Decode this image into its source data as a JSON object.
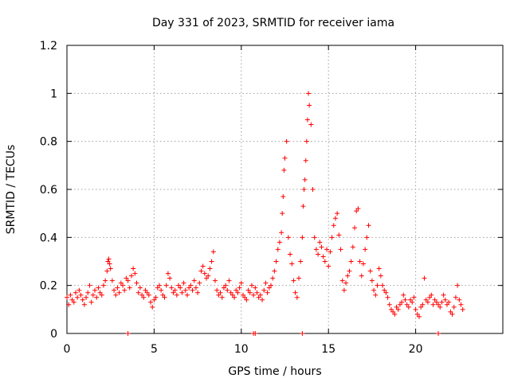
{
  "chart_data": {
    "type": "scatter",
    "title": "Day 331 of 2023, SRMTID for receiver iama",
    "xlabel": "GPS time / hours",
    "ylabel": "SRMTID / TECUs",
    "xlim": [
      0,
      25
    ],
    "ylim": [
      0,
      1.2
    ],
    "xticks": [
      0,
      5,
      10,
      15,
      20
    ],
    "xtick_labels": [
      "0",
      "5",
      "10",
      "15",
      "20"
    ],
    "yticks": [
      0,
      0.2,
      0.4,
      0.6,
      0.8,
      1.0,
      1.2
    ],
    "ytick_labels": [
      "0",
      "0.2",
      "0.4",
      "0.6",
      "0.8",
      "1",
      "1.2"
    ],
    "grid": true,
    "marker": "plus",
    "color": "#ff0000",
    "series": [
      {
        "name": "SRMTID",
        "x": [
          0.0,
          0.1,
          0.2,
          0.3,
          0.4,
          0.5,
          0.6,
          0.7,
          0.8,
          0.9,
          1.0,
          1.1,
          1.2,
          1.3,
          1.4,
          1.5,
          1.6,
          1.7,
          1.8,
          1.9,
          2.0,
          2.1,
          2.2,
          2.3,
          2.35,
          2.4,
          2.45,
          2.5,
          2.6,
          2.7,
          2.8,
          2.9,
          3.0,
          3.1,
          3.2,
          3.3,
          3.4,
          3.5,
          3.6,
          3.7,
          3.8,
          3.9,
          4.0,
          4.1,
          4.2,
          4.3,
          4.4,
          4.5,
          4.6,
          4.7,
          4.8,
          4.9,
          5.0,
          5.1,
          5.2,
          5.3,
          5.4,
          5.5,
          5.6,
          5.7,
          5.8,
          5.9,
          6.0,
          6.1,
          6.2,
          6.3,
          6.4,
          6.5,
          6.6,
          6.7,
          6.8,
          6.9,
          7.0,
          7.1,
          7.2,
          7.3,
          7.4,
          7.5,
          7.6,
          7.7,
          7.8,
          7.9,
          8.0,
          8.1,
          8.2,
          8.3,
          8.4,
          8.5,
          8.6,
          8.7,
          8.8,
          8.9,
          9.0,
          9.1,
          9.2,
          9.3,
          9.4,
          9.5,
          9.6,
          9.7,
          9.8,
          9.9,
          10.0,
          10.1,
          10.2,
          10.3,
          10.4,
          10.5,
          10.6,
          10.7,
          10.8,
          10.9,
          11.0,
          11.1,
          11.2,
          11.3,
          11.4,
          11.5,
          11.6,
          11.7,
          11.8,
          11.9,
          12.0,
          12.1,
          12.2,
          12.3,
          12.35,
          12.4,
          12.45,
          12.5,
          12.6,
          12.7,
          12.8,
          12.9,
          13.0,
          13.1,
          13.2,
          13.3,
          13.4,
          13.5,
          13.55,
          13.6,
          13.65,
          13.7,
          13.75,
          13.8,
          13.85,
          13.9,
          14.0,
          14.1,
          14.2,
          14.3,
          14.4,
          14.5,
          14.6,
          14.7,
          14.8,
          14.9,
          15.0,
          15.1,
          15.2,
          15.3,
          15.4,
          15.5,
          15.6,
          15.7,
          15.8,
          15.9,
          16.0,
          16.1,
          16.2,
          16.3,
          16.4,
          16.5,
          16.6,
          16.7,
          16.8,
          16.9,
          17.0,
          17.1,
          17.2,
          17.3,
          17.4,
          17.5,
          17.6,
          17.7,
          17.8,
          17.9,
          18.0,
          18.1,
          18.2,
          18.3,
          18.4,
          18.5,
          18.6,
          18.7,
          18.8,
          18.9,
          19.0,
          19.1,
          19.2,
          19.3,
          19.4,
          19.5,
          19.6,
          19.7,
          19.8,
          19.9,
          20.0,
          20.1,
          20.2,
          20.3,
          20.4,
          20.5,
          20.6,
          20.7,
          20.8,
          20.9,
          21.0,
          21.1,
          21.2,
          21.3,
          21.4,
          21.5,
          21.6,
          21.7,
          21.8,
          21.9,
          22.0,
          22.1,
          22.2,
          22.3,
          22.4,
          22.5,
          22.6,
          22.7,
          3.5,
          10.7,
          10.8,
          13.5,
          21.3
        ],
        "y": [
          0.15,
          0.12,
          0.16,
          0.14,
          0.13,
          0.17,
          0.15,
          0.18,
          0.16,
          0.14,
          0.12,
          0.15,
          0.17,
          0.2,
          0.13,
          0.16,
          0.18,
          0.15,
          0.19,
          0.17,
          0.16,
          0.2,
          0.22,
          0.26,
          0.3,
          0.31,
          0.29,
          0.27,
          0.22,
          0.18,
          0.16,
          0.19,
          0.17,
          0.21,
          0.2,
          0.18,
          0.23,
          0.22,
          0.19,
          0.24,
          0.27,
          0.25,
          0.21,
          0.17,
          0.19,
          0.16,
          0.15,
          0.18,
          0.17,
          0.16,
          0.13,
          0.11,
          0.14,
          0.15,
          0.19,
          0.2,
          0.18,
          0.16,
          0.15,
          0.2,
          0.25,
          0.23,
          0.19,
          0.17,
          0.18,
          0.16,
          0.2,
          0.19,
          0.17,
          0.21,
          0.18,
          0.16,
          0.19,
          0.2,
          0.18,
          0.22,
          0.19,
          0.17,
          0.21,
          0.26,
          0.28,
          0.25,
          0.23,
          0.24,
          0.27,
          0.3,
          0.34,
          0.22,
          0.18,
          0.16,
          0.17,
          0.15,
          0.19,
          0.2,
          0.18,
          0.22,
          0.17,
          0.16,
          0.15,
          0.18,
          0.17,
          0.19,
          0.21,
          0.16,
          0.15,
          0.14,
          0.18,
          0.17,
          0.2,
          0.16,
          0.19,
          0.17,
          0.15,
          0.16,
          0.14,
          0.18,
          0.21,
          0.17,
          0.19,
          0.2,
          0.23,
          0.26,
          0.3,
          0.35,
          0.38,
          0.42,
          0.5,
          0.57,
          0.68,
          0.73,
          0.8,
          0.4,
          0.33,
          0.29,
          0.22,
          0.17,
          0.15,
          0.23,
          0.3,
          0.4,
          0.53,
          0.6,
          0.64,
          0.72,
          0.8,
          0.89,
          1.0,
          0.95,
          0.87,
          0.6,
          0.4,
          0.35,
          0.33,
          0.38,
          0.36,
          0.32,
          0.3,
          0.35,
          0.28,
          0.34,
          0.4,
          0.45,
          0.48,
          0.5,
          0.41,
          0.35,
          0.22,
          0.18,
          0.21,
          0.24,
          0.26,
          0.3,
          0.36,
          0.44,
          0.51,
          0.52,
          0.3,
          0.24,
          0.29,
          0.35,
          0.4,
          0.45,
          0.26,
          0.22,
          0.18,
          0.16,
          0.2,
          0.27,
          0.24,
          0.2,
          0.18,
          0.17,
          0.15,
          0.12,
          0.1,
          0.09,
          0.08,
          0.11,
          0.1,
          0.12,
          0.13,
          0.16,
          0.14,
          0.12,
          0.11,
          0.14,
          0.13,
          0.15,
          0.1,
          0.08,
          0.07,
          0.11,
          0.12,
          0.23,
          0.14,
          0.13,
          0.15,
          0.16,
          0.12,
          0.14,
          0.13,
          0.12,
          0.11,
          0.13,
          0.16,
          0.14,
          0.12,
          0.13,
          0.09,
          0.08,
          0.11,
          0.15,
          0.2,
          0.14,
          0.12,
          0.1,
          0.0,
          0.0,
          0.0,
          0.0,
          0.0
        ]
      }
    ]
  }
}
